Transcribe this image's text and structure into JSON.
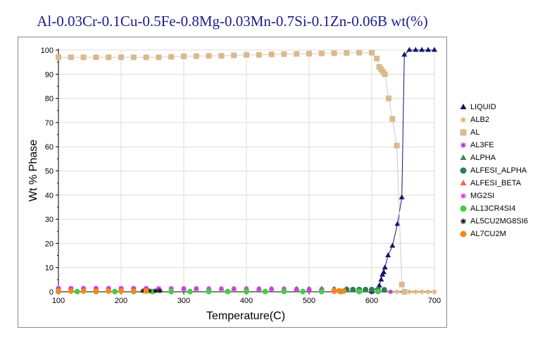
{
  "chart_data": {
    "type": "scatter",
    "title": "Al-0.03Cr-0.1Cu-0.5Fe-0.8Mg-0.03Mn-0.7Si-0.1Zn-0.06B wt(%)",
    "xlabel": "Temperature(C)",
    "ylabel": "Wt % Phase",
    "xlim": [
      100,
      700
    ],
    "ylim": [
      0,
      100
    ],
    "xticks": [
      "100",
      "200",
      "300",
      "400",
      "500",
      "600",
      "700"
    ],
    "yticks": [
      "0",
      "10",
      "20",
      "30",
      "40",
      "50",
      "60",
      "70",
      "80",
      "90",
      "100"
    ],
    "grid": true,
    "legend_position": "right",
    "series": [
      {
        "name": "LIQUID",
        "marker": "triangle",
        "color": "#14146e",
        "line": true,
        "x": [
          600,
          612,
          615,
          617,
          619,
          621,
          626,
          633,
          641,
          648,
          652,
          660,
          670,
          680,
          690,
          700
        ],
        "y": [
          0,
          2.5,
          5,
          7,
          8,
          10,
          15,
          19,
          28,
          39,
          98,
          100,
          100,
          100,
          100,
          100
        ]
      },
      {
        "name": "ALB2",
        "marker": "asterisk",
        "color": "#d8b06a",
        "line": false,
        "x": [
          640,
          652,
          660,
          670,
          680,
          690,
          700
        ],
        "y": [
          0,
          0,
          0,
          0,
          0,
          0,
          0
        ]
      },
      {
        "name": "AL",
        "marker": "square",
        "color": "#dbb98c",
        "line": true,
        "x": [
          100,
          120,
          140,
          160,
          180,
          200,
          220,
          240,
          260,
          280,
          300,
          320,
          340,
          360,
          380,
          400,
          420,
          440,
          460,
          480,
          500,
          520,
          540,
          560,
          580,
          600,
          608,
          612,
          615,
          618,
          621,
          627,
          633,
          640,
          648,
          652
        ],
        "y": [
          97,
          97,
          97,
          97,
          97,
          97,
          97,
          97,
          97,
          97.2,
          97.4,
          97.5,
          97.6,
          97.6,
          97.8,
          98,
          98,
          98.2,
          98.3,
          98.4,
          98.5,
          98.6,
          98.7,
          98.8,
          98.9,
          98.9,
          96.5,
          93,
          92,
          91,
          90,
          80,
          71.5,
          60.5,
          3,
          0
        ]
      },
      {
        "name": "AL3FE",
        "marker": "asterisk",
        "color": "#a632c8",
        "line": false,
        "x": [
          100,
          120,
          140,
          160,
          180,
          200,
          220,
          240,
          260,
          280,
          300,
          320,
          340,
          360,
          380,
          400,
          420,
          440,
          460,
          480,
          500,
          520,
          540,
          560,
          580,
          600,
          610,
          620,
          630
        ],
        "y": [
          1.5,
          1.5,
          1.5,
          1.5,
          1.5,
          1.5,
          1.5,
          1.5,
          1.4,
          1.4,
          1.4,
          1.4,
          1.3,
          1.3,
          1.3,
          1.2,
          1.2,
          1.2,
          1.1,
          1.1,
          1.0,
          1.0,
          1.0,
          0.9,
          0.9,
          0.9,
          0.8,
          0.6,
          0
        ]
      },
      {
        "name": "ALPHA",
        "marker": "triangle",
        "color": "#3d8a5e",
        "line": false,
        "x": [
          300,
          320,
          340,
          360,
          380,
          400,
          420,
          440,
          460,
          480,
          500,
          520,
          540,
          560
        ],
        "y": [
          1.2,
          1.2,
          1.2,
          1.2,
          1.2,
          1.2,
          1.2,
          1.2,
          1.2,
          1.2,
          1.2,
          1.2,
          1.2,
          1.2
        ]
      },
      {
        "name": "ALFESI_ALPHA",
        "marker": "circle",
        "color": "#2e7d4f",
        "line": false,
        "x": [
          560,
          570,
          580,
          590,
          600,
          610,
          620
        ],
        "y": [
          0.9,
          0.9,
          0.9,
          0.9,
          0.9,
          0.9,
          0.8
        ]
      },
      {
        "name": "ALFESI_BETA",
        "marker": "triangle",
        "color": "#ee6a50",
        "line": false,
        "x": [
          100,
          120,
          140,
          160,
          180,
          200,
          220,
          240
        ],
        "y": [
          0.5,
          0.5,
          0.5,
          0.5,
          0.5,
          0.5,
          0.5,
          0.5
        ]
      },
      {
        "name": "MG2SI",
        "marker": "asterisk",
        "color": "#e030e8",
        "line": false,
        "x": [
          100,
          120,
          140,
          160,
          180,
          200,
          220,
          240,
          260,
          280,
          300,
          320,
          340,
          360,
          380,
          400,
          420,
          440,
          460,
          480,
          500,
          520,
          540
        ],
        "y": [
          1.3,
          1.3,
          1.3,
          1.3,
          1.3,
          1.3,
          1.3,
          1.3,
          1.3,
          1.3,
          1.3,
          1.3,
          1.3,
          1.3,
          1.3,
          1.3,
          1.2,
          1.2,
          1.1,
          1.0,
          0.9,
          0.7,
          0
        ]
      },
      {
        "name": "AL13CR4SI4",
        "marker": "circle",
        "color": "#44cc44",
        "line": false,
        "x": [
          100,
          130,
          160,
          190,
          220,
          250,
          280,
          310,
          340,
          370,
          400,
          430,
          460,
          490,
          520,
          550,
          580,
          610
        ],
        "y": [
          0.1,
          0.1,
          0.1,
          0.1,
          0.1,
          0.1,
          0.1,
          0.1,
          0.1,
          0.1,
          0.1,
          0.1,
          0.1,
          0.1,
          0.1,
          0.1,
          0.1,
          0.1
        ]
      },
      {
        "name": "AL5CU2MG8SI6",
        "marker": "asterisk",
        "color": "#111111",
        "line": false,
        "x": [
          100,
          120,
          140,
          160,
          180,
          200,
          220,
          235,
          245,
          255,
          262
        ],
        "y": [
          0.4,
          0.4,
          0.4,
          0.4,
          0.4,
          0.4,
          0.4,
          0.4,
          0.4,
          0.4,
          0.4
        ]
      },
      {
        "name": "AL7CU2M",
        "marker": "circle",
        "color": "#f0891e",
        "line": false,
        "x": [
          100,
          120,
          140,
          160,
          180,
          200,
          220,
          240,
          540,
          548,
          555
        ],
        "y": [
          0.3,
          0.3,
          0.3,
          0.3,
          0.3,
          0.3,
          0.3,
          0.3,
          0.4,
          0.4,
          0.3
        ]
      }
    ]
  }
}
